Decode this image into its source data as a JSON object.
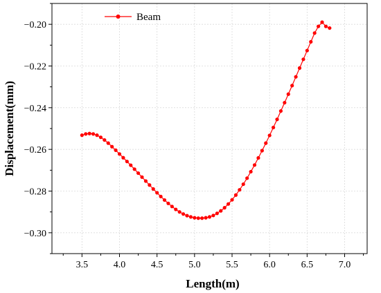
{
  "chart_data": {
    "type": "line",
    "xlabel": "Length(m)",
    "ylabel": "Displacement(mm)",
    "xlim": [
      3.1,
      7.3
    ],
    "ylim": [
      -0.31,
      -0.19
    ],
    "x_ticks": [
      3.5,
      4.0,
      4.5,
      5.0,
      5.5,
      6.0,
      6.5,
      7.0
    ],
    "y_ticks": [
      -0.3,
      -0.28,
      -0.26,
      -0.24,
      -0.22,
      -0.2
    ],
    "x_tick_labels": [
      "3.5",
      "4.0",
      "4.5",
      "5.0",
      "5.5",
      "6.0",
      "6.5",
      "7.0"
    ],
    "y_tick_labels": [
      "−0.30",
      "−0.28",
      "−0.26",
      "−0.24",
      "−0.22",
      "−0.20"
    ],
    "grid": true,
    "legend_position": "top-left",
    "series": [
      {
        "name": "Beam",
        "color": "#ff0000",
        "marker": "circle",
        "x": [
          3.5,
          3.55,
          3.6,
          3.65,
          3.7,
          3.75,
          3.8,
          3.85,
          3.9,
          3.95,
          4.0,
          4.05,
          4.1,
          4.15,
          4.2,
          4.25,
          4.3,
          4.35,
          4.4,
          4.45,
          4.5,
          4.55,
          4.6,
          4.65,
          4.7,
          4.75,
          4.8,
          4.85,
          4.9,
          4.95,
          5.0,
          5.05,
          5.1,
          5.15,
          5.2,
          5.25,
          5.3,
          5.35,
          5.4,
          5.45,
          5.5,
          5.55,
          5.6,
          5.65,
          5.7,
          5.75,
          5.8,
          5.85,
          5.9,
          5.95,
          6.0,
          6.05,
          6.1,
          6.15,
          6.2,
          6.25,
          6.3,
          6.35,
          6.4,
          6.45,
          6.5,
          6.55,
          6.6,
          6.65,
          6.7,
          6.75,
          6.8
        ],
        "y": [
          -0.2532,
          -0.2526,
          -0.2524,
          -0.2526,
          -0.2532,
          -0.2542,
          -0.2555,
          -0.257,
          -0.2587,
          -0.2604,
          -0.2622,
          -0.264,
          -0.2658,
          -0.2676,
          -0.2695,
          -0.2714,
          -0.2733,
          -0.2752,
          -0.2771,
          -0.279,
          -0.2808,
          -0.2826,
          -0.2843,
          -0.2859,
          -0.2874,
          -0.2888,
          -0.29,
          -0.291,
          -0.2918,
          -0.2924,
          -0.2928,
          -0.293,
          -0.293,
          -0.2928,
          -0.2924,
          -0.2917,
          -0.2907,
          -0.2895,
          -0.288,
          -0.2862,
          -0.2842,
          -0.2819,
          -0.2794,
          -0.2767,
          -0.2738,
          -0.2707,
          -0.2675,
          -0.2641,
          -0.2606,
          -0.257,
          -0.2533,
          -0.2495,
          -0.2456,
          -0.2416,
          -0.2376,
          -0.2335,
          -0.2294,
          -0.2252,
          -0.221,
          -0.2168,
          -0.2126,
          -0.2084,
          -0.2042,
          -0.201,
          -0.199,
          -0.201,
          -0.2018
        ]
      }
    ]
  }
}
